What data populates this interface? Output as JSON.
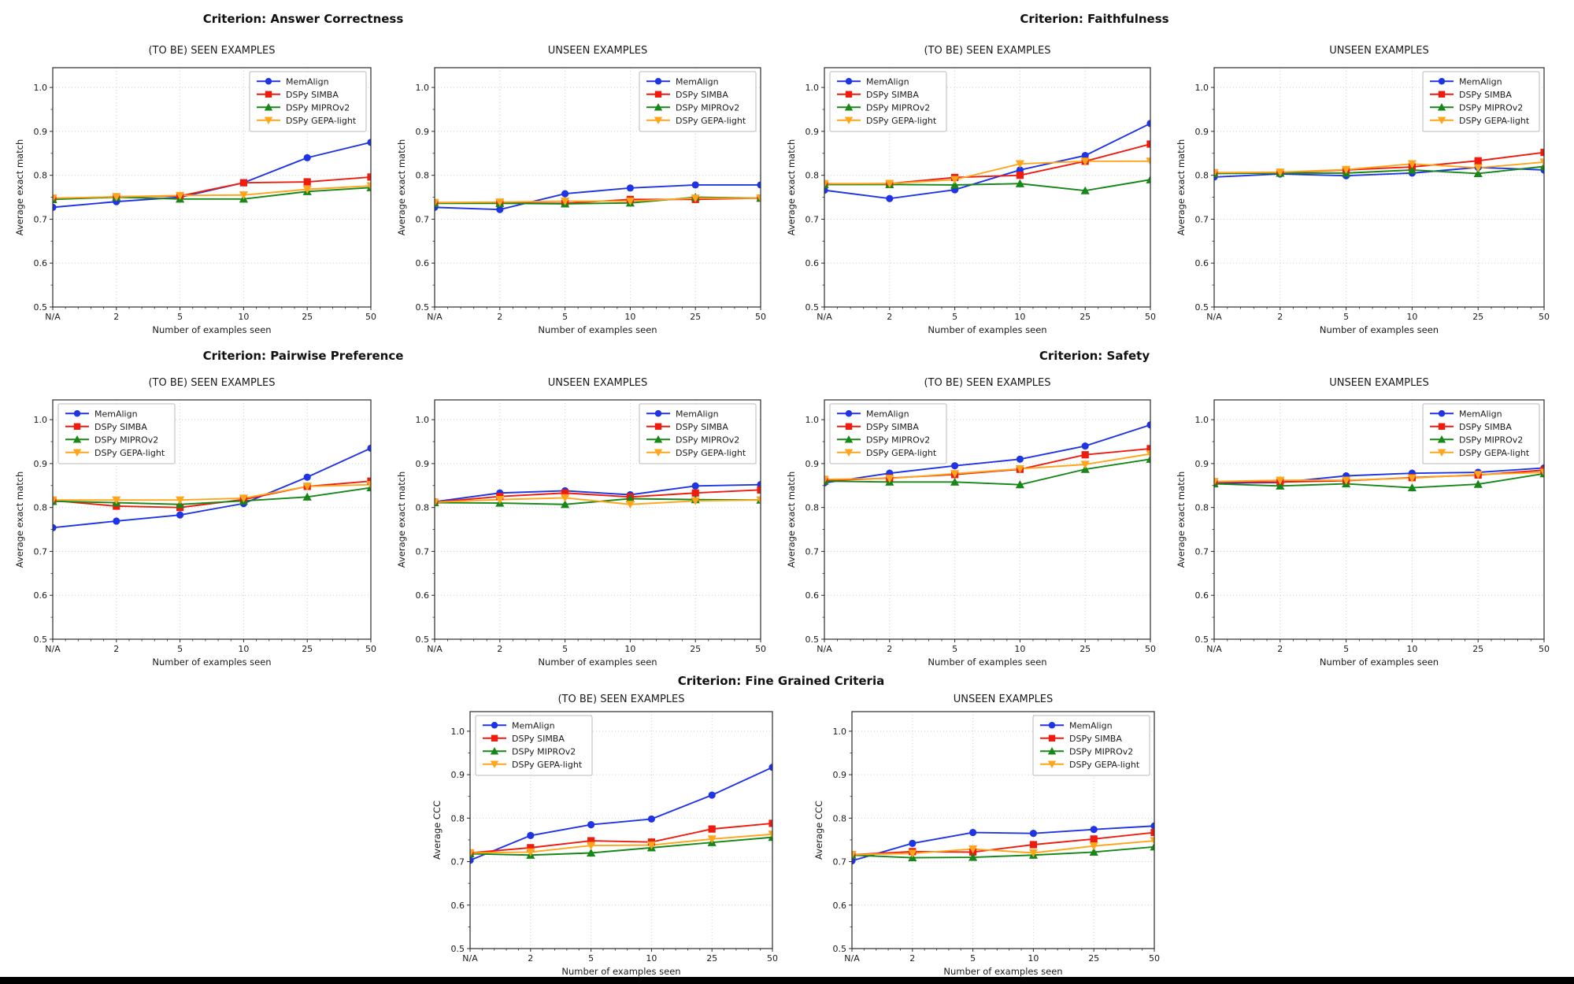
{
  "figure": {
    "background": "#ffffff",
    "bottom_bar_color": "#000000",
    "criteria_titles": [
      {
        "text": "Criterion: Answer Correctness"
      },
      {
        "text": "Criterion: Faithfulness"
      },
      {
        "text": "Criterion: Pairwise Preference"
      },
      {
        "text": "Criterion: Safety"
      },
      {
        "text": "Criterion: Fine Grained Criteria"
      }
    ]
  },
  "axes": {
    "xlabel": "Number of examples seen",
    "x_ticks": [
      "N/A",
      "2",
      "5",
      "10",
      "25",
      "50"
    ],
    "y_ticks": [
      1.0,
      0.9,
      0.8,
      0.7,
      0.6,
      0.5
    ],
    "ylim": [
      0.5,
      1.045
    ],
    "grid": "dotted"
  },
  "series_styles": [
    {
      "name": "MemAlign",
      "color": "#1f35e5",
      "marker": "circle"
    },
    {
      "name": "DSPy SIMBA",
      "color": "#ee1c0f",
      "marker": "square"
    },
    {
      "name": "DSPy MIPROv2",
      "color": "#178717",
      "marker": "triangle-up"
    },
    {
      "name": "DSPy GEPA-light",
      "color": "#ffa51c",
      "marker": "triangle-down"
    }
  ],
  "chart_data": [
    {
      "id": "answer-correctness-seen",
      "type": "line",
      "group": "Criterion: Answer Correctness",
      "title": "(TO BE) SEEN EXAMPLES",
      "ylabel": "Average exact match",
      "legend_pos": "top-right",
      "categories": [
        "N/A",
        "2",
        "5",
        "10",
        "25",
        "50"
      ],
      "series": [
        {
          "name": "MemAlign",
          "values": [
            0.727,
            0.74,
            0.75,
            0.783,
            0.84,
            0.875
          ]
        },
        {
          "name": "DSPy SIMBA",
          "values": [
            0.747,
            0.751,
            0.753,
            0.783,
            0.785,
            0.796
          ]
        },
        {
          "name": "DSPy MIPROv2",
          "values": [
            0.745,
            0.75,
            0.746,
            0.746,
            0.763,
            0.772
          ]
        },
        {
          "name": "DSPy GEPA-light",
          "values": [
            0.748,
            0.751,
            0.754,
            0.755,
            0.768,
            0.776
          ]
        }
      ]
    },
    {
      "id": "answer-correctness-unseen",
      "type": "line",
      "group": "Criterion: Answer Correctness",
      "title": "UNSEEN EXAMPLES",
      "ylabel": "Average exact match",
      "legend_pos": "top-right",
      "categories": [
        "N/A",
        "2",
        "5",
        "10",
        "25",
        "50"
      ],
      "series": [
        {
          "name": "MemAlign",
          "values": [
            0.727,
            0.722,
            0.758,
            0.771,
            0.778,
            0.778
          ]
        },
        {
          "name": "DSPy SIMBA",
          "values": [
            0.737,
            0.737,
            0.736,
            0.745,
            0.745,
            0.748
          ]
        },
        {
          "name": "DSPy MIPROv2",
          "values": [
            0.736,
            0.736,
            0.735,
            0.737,
            0.75,
            0.748
          ]
        },
        {
          "name": "DSPy GEPA-light",
          "values": [
            0.738,
            0.739,
            0.741,
            0.741,
            0.748,
            0.748
          ]
        }
      ]
    },
    {
      "id": "faithfulness-seen",
      "type": "line",
      "group": "Criterion: Faithfulness",
      "title": "(TO BE) SEEN EXAMPLES",
      "ylabel": "Average exact match",
      "legend_pos": "top-left",
      "categories": [
        "N/A",
        "2",
        "5",
        "10",
        "25",
        "50"
      ],
      "series": [
        {
          "name": "MemAlign",
          "values": [
            0.766,
            0.747,
            0.767,
            0.812,
            0.845,
            0.918
          ]
        },
        {
          "name": "DSPy SIMBA",
          "values": [
            0.78,
            0.781,
            0.795,
            0.8,
            0.832,
            0.871
          ]
        },
        {
          "name": "DSPy MIPROv2",
          "values": [
            0.779,
            0.779,
            0.778,
            0.781,
            0.765,
            0.79
          ]
        },
        {
          "name": "DSPy GEPA-light",
          "values": [
            0.781,
            0.781,
            0.79,
            0.826,
            0.832,
            0.832
          ]
        }
      ]
    },
    {
      "id": "faithfulness-unseen",
      "type": "line",
      "group": "Criterion: Faithfulness",
      "title": "UNSEEN EXAMPLES",
      "ylabel": "Average exact match",
      "legend_pos": "top-right",
      "categories": [
        "N/A",
        "2",
        "5",
        "10",
        "25",
        "50"
      ],
      "series": [
        {
          "name": "MemAlign",
          "values": [
            0.796,
            0.803,
            0.799,
            0.805,
            0.818,
            0.812
          ]
        },
        {
          "name": "DSPy SIMBA",
          "values": [
            0.805,
            0.806,
            0.812,
            0.819,
            0.833,
            0.852
          ]
        },
        {
          "name": "DSPy MIPROv2",
          "values": [
            0.804,
            0.805,
            0.805,
            0.812,
            0.804,
            0.82
          ]
        },
        {
          "name": "DSPy GEPA-light",
          "values": [
            0.806,
            0.807,
            0.813,
            0.826,
            0.817,
            0.83
          ]
        }
      ]
    },
    {
      "id": "pairwise-preference-seen",
      "type": "line",
      "group": "Criterion: Pairwise Preference",
      "title": "(TO BE) SEEN EXAMPLES",
      "ylabel": "Average exact match",
      "legend_pos": "top-left",
      "categories": [
        "N/A",
        "2",
        "5",
        "10",
        "25",
        "50"
      ],
      "series": [
        {
          "name": "MemAlign",
          "values": [
            0.754,
            0.769,
            0.783,
            0.809,
            0.869,
            0.935
          ]
        },
        {
          "name": "DSPy SIMBA",
          "values": [
            0.816,
            0.803,
            0.8,
            0.818,
            0.848,
            0.86
          ]
        },
        {
          "name": "DSPy MIPROv2",
          "values": [
            0.814,
            0.811,
            0.807,
            0.815,
            0.824,
            0.845
          ]
        },
        {
          "name": "DSPy GEPA-light",
          "values": [
            0.817,
            0.817,
            0.817,
            0.821,
            0.848,
            0.852
          ]
        }
      ]
    },
    {
      "id": "pairwise-preference-unseen",
      "type": "line",
      "group": "Criterion: Pairwise Preference",
      "title": "UNSEEN EXAMPLES",
      "ylabel": "Average exact match",
      "legend_pos": "top-right",
      "categories": [
        "N/A",
        "2",
        "5",
        "10",
        "25",
        "50"
      ],
      "series": [
        {
          "name": "MemAlign",
          "values": [
            0.813,
            0.833,
            0.838,
            0.829,
            0.849,
            0.852
          ]
        },
        {
          "name": "DSPy SIMBA",
          "values": [
            0.812,
            0.825,
            0.833,
            0.824,
            0.833,
            0.84
          ]
        },
        {
          "name": "DSPy MIPROv2",
          "values": [
            0.811,
            0.81,
            0.807,
            0.82,
            0.818,
            0.817
          ]
        },
        {
          "name": "DSPy GEPA-light",
          "values": [
            0.812,
            0.818,
            0.822,
            0.807,
            0.815,
            0.817
          ]
        }
      ]
    },
    {
      "id": "safety-seen",
      "type": "line",
      "group": "Criterion: Safety",
      "title": "(TO BE) SEEN EXAMPLES",
      "ylabel": "Average exact match",
      "legend_pos": "top-left",
      "categories": [
        "N/A",
        "2",
        "5",
        "10",
        "25",
        "50"
      ],
      "series": [
        {
          "name": "MemAlign",
          "values": [
            0.856,
            0.878,
            0.895,
            0.91,
            0.94,
            0.988
          ]
        },
        {
          "name": "DSPy SIMBA",
          "values": [
            0.861,
            0.867,
            0.875,
            0.887,
            0.92,
            0.934
          ]
        },
        {
          "name": "DSPy MIPROv2",
          "values": [
            0.86,
            0.858,
            0.858,
            0.852,
            0.887,
            0.91
          ]
        },
        {
          "name": "DSPy GEPA-light",
          "values": [
            0.864,
            0.866,
            0.877,
            0.888,
            0.898,
            0.922
          ]
        }
      ]
    },
    {
      "id": "safety-unseen",
      "type": "line",
      "group": "Criterion: Safety",
      "title": "UNSEEN EXAMPLES",
      "ylabel": "Average exact match",
      "legend_pos": "top-right",
      "categories": [
        "N/A",
        "2",
        "5",
        "10",
        "25",
        "50"
      ],
      "series": [
        {
          "name": "MemAlign",
          "values": [
            0.855,
            0.857,
            0.872,
            0.878,
            0.88,
            0.89
          ]
        },
        {
          "name": "DSPy SIMBA",
          "values": [
            0.858,
            0.858,
            0.861,
            0.868,
            0.874,
            0.885
          ]
        },
        {
          "name": "DSPy MIPROv2",
          "values": [
            0.854,
            0.849,
            0.854,
            0.845,
            0.853,
            0.877
          ]
        },
        {
          "name": "DSPy GEPA-light",
          "values": [
            0.859,
            0.862,
            0.862,
            0.867,
            0.875,
            0.88
          ]
        }
      ]
    },
    {
      "id": "fine-grained-criteria-seen",
      "type": "line",
      "group": "Criterion: Fine Grained Criteria",
      "title": "(TO BE) SEEN EXAMPLES",
      "ylabel": "Average CCC",
      "legend_pos": "top-left",
      "categories": [
        "N/A",
        "2",
        "5",
        "10",
        "25",
        "50"
      ],
      "series": [
        {
          "name": "MemAlign",
          "values": [
            0.703,
            0.76,
            0.785,
            0.798,
            0.853,
            0.917
          ]
        },
        {
          "name": "DSPy SIMBA",
          "values": [
            0.72,
            0.732,
            0.748,
            0.745,
            0.775,
            0.788
          ]
        },
        {
          "name": "DSPy MIPROv2",
          "values": [
            0.718,
            0.715,
            0.72,
            0.732,
            0.744,
            0.756
          ]
        },
        {
          "name": "DSPy GEPA-light",
          "values": [
            0.72,
            0.722,
            0.737,
            0.738,
            0.752,
            0.763
          ]
        }
      ]
    },
    {
      "id": "fine-grained-criteria-unseen",
      "type": "line",
      "group": "Criterion: Fine Grained Criteria",
      "title": "UNSEEN EXAMPLES",
      "ylabel": "Average CCC",
      "legend_pos": "top-right",
      "categories": [
        "N/A",
        "2",
        "5",
        "10",
        "25",
        "50"
      ],
      "series": [
        {
          "name": "MemAlign",
          "values": [
            0.702,
            0.742,
            0.767,
            0.765,
            0.774,
            0.782
          ]
        },
        {
          "name": "DSPy SIMBA",
          "values": [
            0.716,
            0.723,
            0.722,
            0.739,
            0.752,
            0.767
          ]
        },
        {
          "name": "DSPy MIPROv2",
          "values": [
            0.715,
            0.709,
            0.71,
            0.715,
            0.722,
            0.734
          ]
        },
        {
          "name": "DSPy GEPA-light",
          "values": [
            0.716,
            0.719,
            0.729,
            0.72,
            0.736,
            0.748
          ]
        }
      ]
    }
  ]
}
